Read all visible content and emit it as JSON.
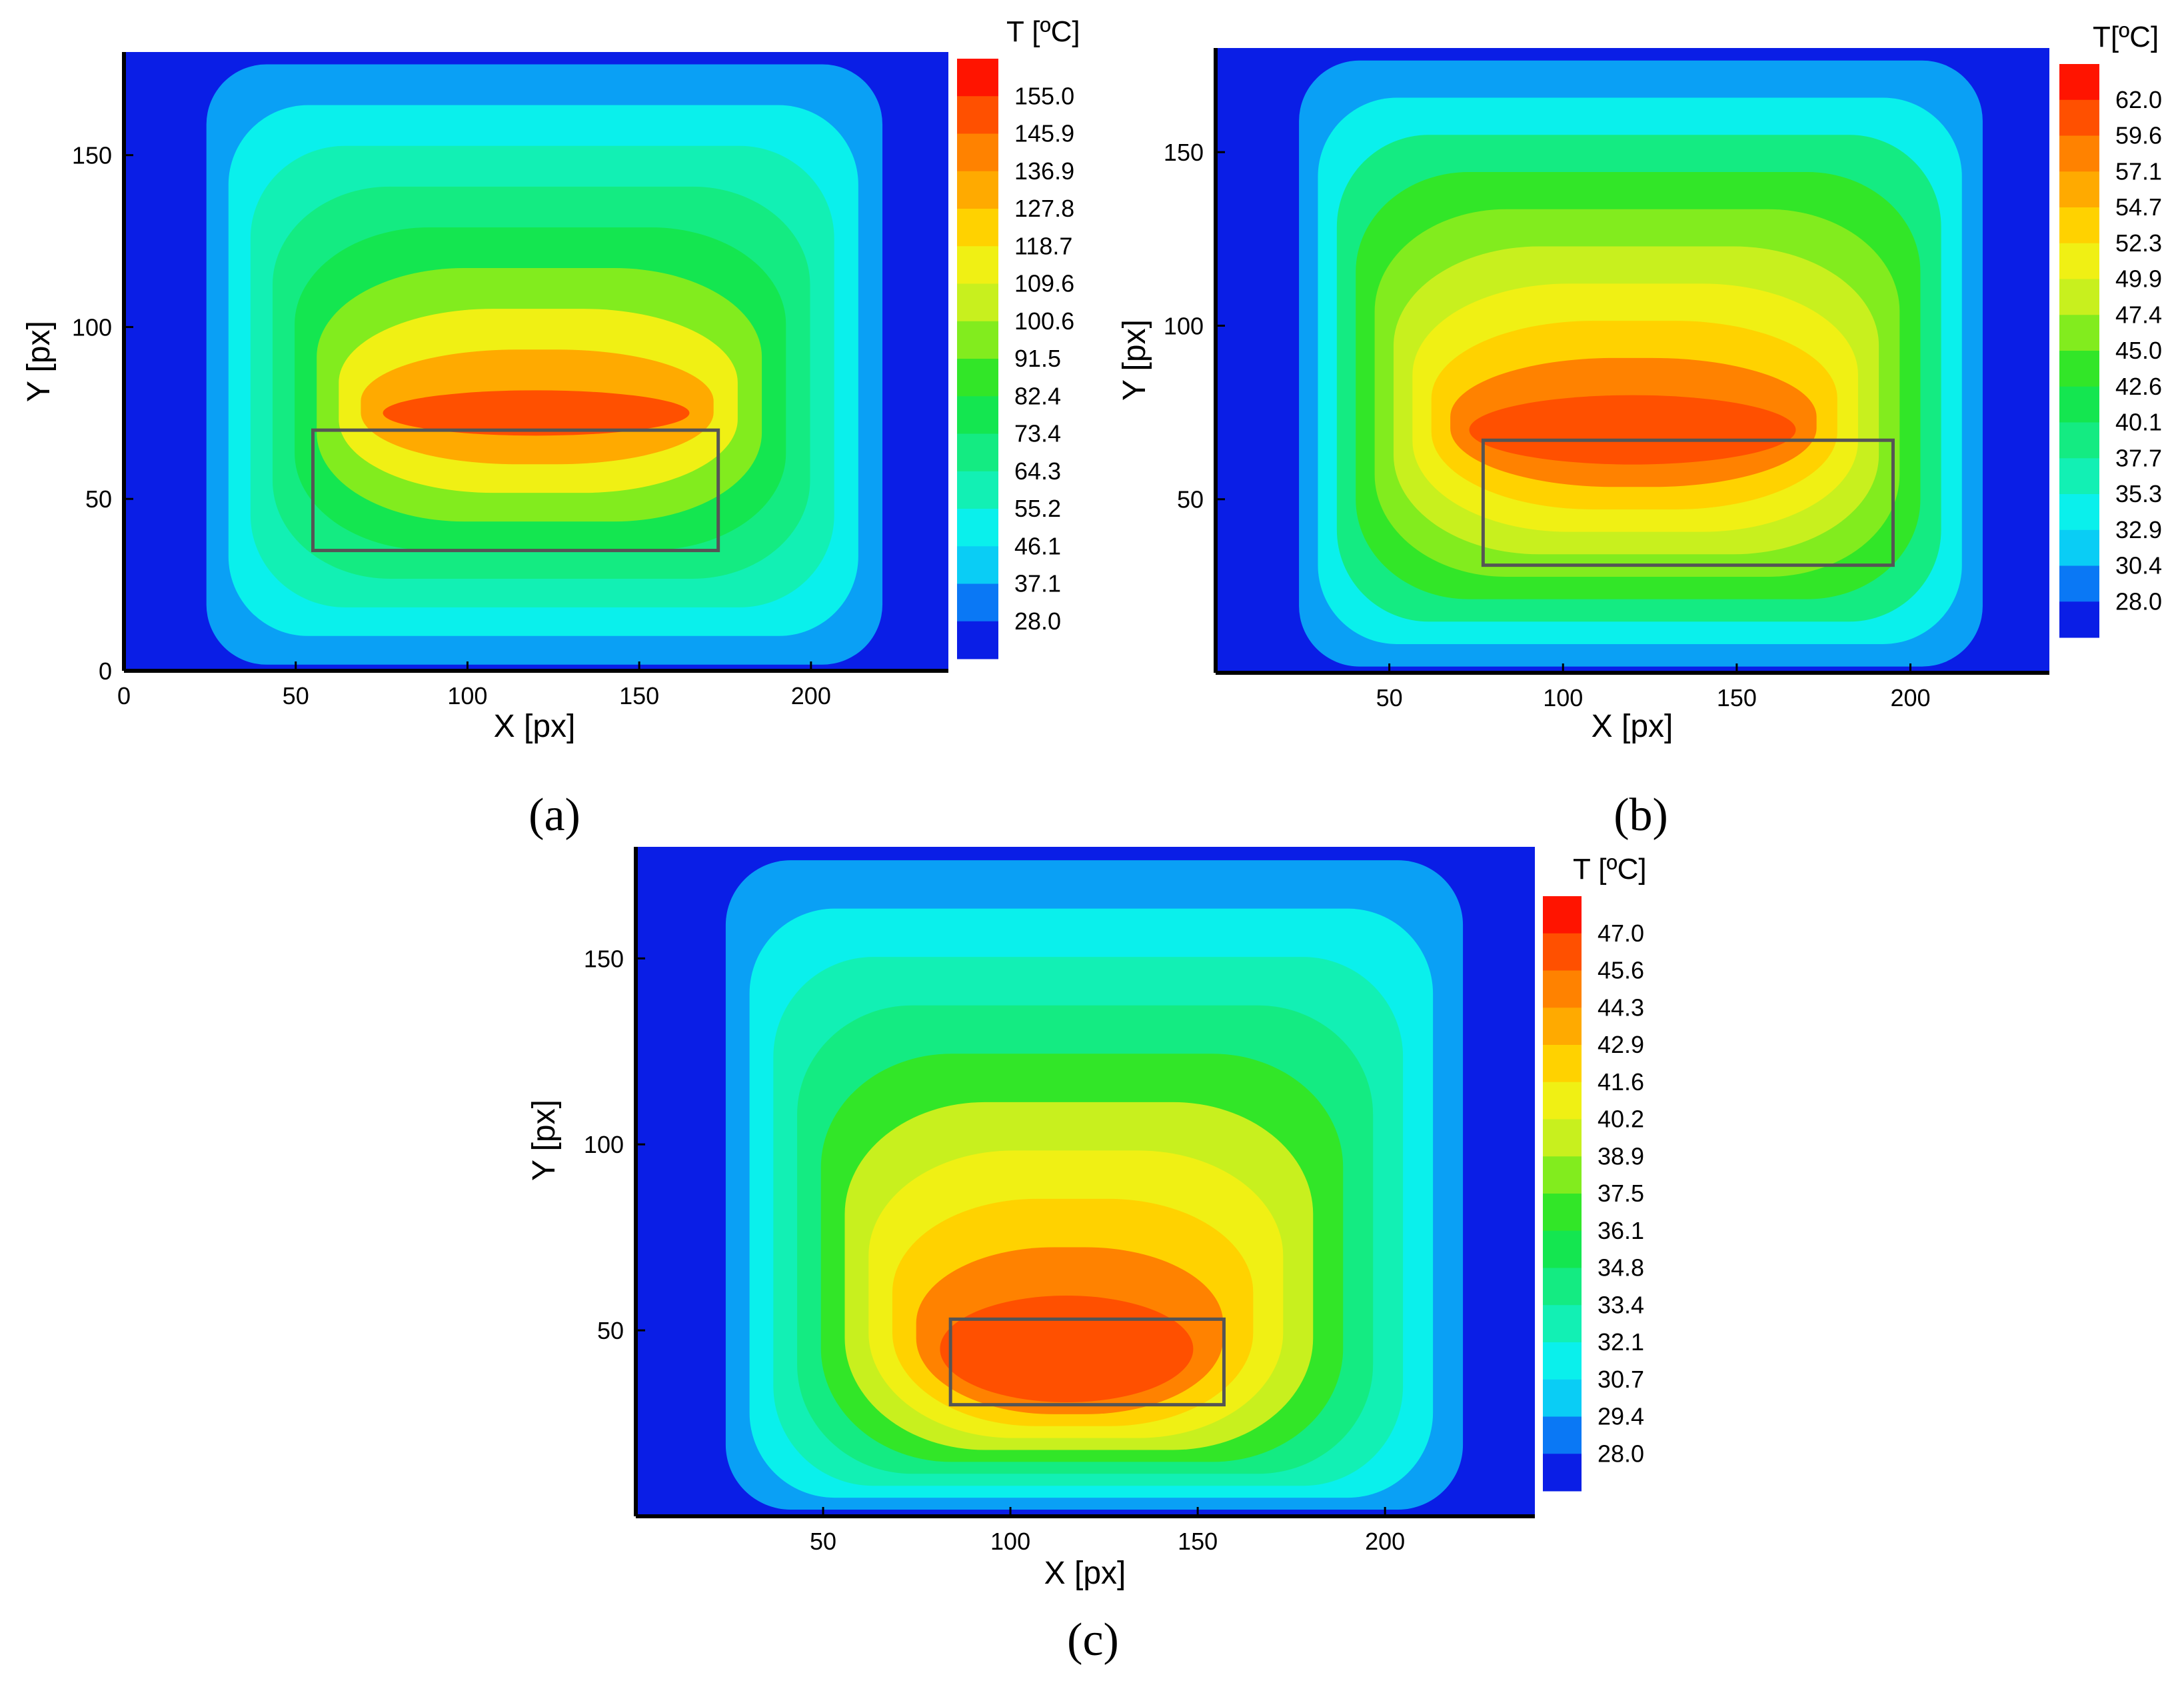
{
  "panels": [
    {
      "label": "(a)",
      "cbar_title": "T [ºC]",
      "xlabel": "X [px]",
      "ylabel": "Y [px]",
      "xticks": [
        "0",
        "50",
        "100",
        "150",
        "200"
      ],
      "yticks": [
        "0",
        "50",
        "100",
        "150"
      ]
    },
    {
      "label": "(b)",
      "cbar_title": "T[ºC]",
      "xlabel": "X [px]",
      "ylabel": "Y [px]",
      "xticks": [
        "50",
        "100",
        "150",
        "200"
      ],
      "yticks": [
        "50",
        "100",
        "150"
      ]
    },
    {
      "label": "(c)",
      "cbar_title": "T [ºC]",
      "xlabel": "X [px]",
      "ylabel": "Y [px]",
      "xticks": [
        "50",
        "100",
        "150",
        "200"
      ],
      "yticks": [
        "50",
        "100",
        "150"
      ]
    }
  ],
  "colormap": [
    "#0a1ee6",
    "#0a46f0",
    "#0a78f5",
    "#0aa0f5",
    "#0acdf5",
    "#0af0ec",
    "#12f0b4",
    "#14eb82",
    "#14e650",
    "#32e628",
    "#82ec1e",
    "#c8f01e",
    "#f0f014",
    "#ffd200",
    "#ffaa00",
    "#ff8200",
    "#ff5000",
    "#ff1400"
  ],
  "chart_data": [
    {
      "type": "heatmap",
      "xlabel": "X [px]",
      "ylabel": "Y [px]",
      "xlim": [
        0,
        240
      ],
      "ylim": [
        0,
        180
      ],
      "colorbar_title": "T [ºC]",
      "colorbar_levels": [
        155.0,
        145.9,
        136.9,
        127.8,
        118.7,
        109.6,
        100.6,
        91.5,
        82.4,
        73.4,
        64.3,
        55.2,
        46.1,
        37.1,
        28.0
      ],
      "hotspot": {
        "x": 120,
        "y": 75
      },
      "rectangle": {
        "x": [
          55,
          173
        ],
        "y": [
          35,
          70
        ]
      }
    },
    {
      "type": "heatmap",
      "xlabel": "X [px]",
      "ylabel": "Y [px]",
      "xlim": [
        0,
        240
      ],
      "ylim": [
        0,
        180
      ],
      "colorbar_title": "T[ºC]",
      "colorbar_levels": [
        62.0,
        59.6,
        57.1,
        54.7,
        52.3,
        49.9,
        47.4,
        45.0,
        42.6,
        40.1,
        37.7,
        35.3,
        32.9,
        30.4,
        28.0
      ],
      "hotspot": {
        "x": 120,
        "y": 70
      },
      "rectangle": {
        "x": [
          77,
          195
        ],
        "y": [
          31,
          67
        ]
      }
    },
    {
      "type": "heatmap",
      "xlabel": "X [px]",
      "ylabel": "Y [px]",
      "xlim": [
        0,
        240
      ],
      "ylim": [
        0,
        180
      ],
      "colorbar_title": "T [ºC]",
      "colorbar_levels": [
        47.0,
        45.6,
        44.3,
        42.9,
        41.6,
        40.2,
        38.9,
        37.5,
        36.1,
        34.8,
        33.4,
        32.1,
        30.7,
        29.4,
        28.0
      ],
      "hotspot": {
        "x": 115,
        "y": 45
      },
      "rectangle": {
        "x": [
          84,
          157
        ],
        "y": [
          30,
          53
        ]
      }
    }
  ]
}
